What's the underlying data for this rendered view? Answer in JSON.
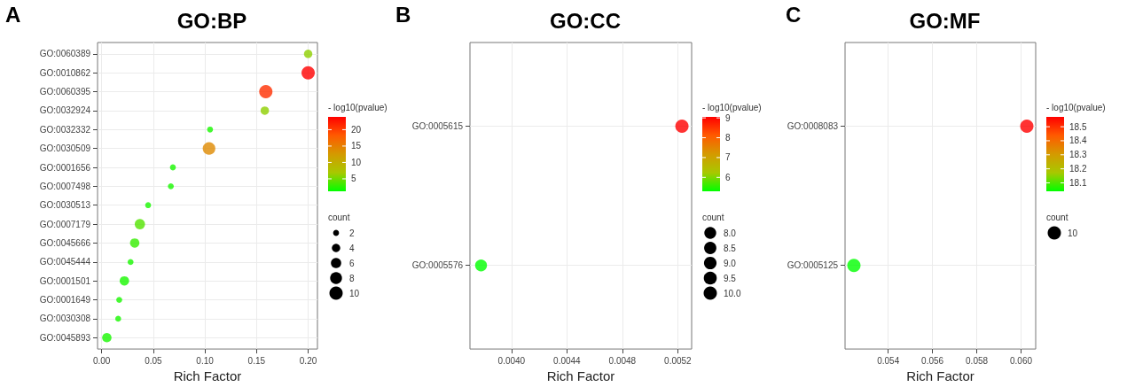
{
  "chart_data": [
    {
      "type": "bubble",
      "orientation": "horizontal",
      "title": "GO:BP",
      "annotations": [
        "A"
      ],
      "xlabel": "Rich Factor",
      "clabel": "- log10(pvalue)",
      "legend_title": "count",
      "grid": true,
      "categories": [
        "GO:0060389",
        "GO:0010862",
        "GO:0060395",
        "GO:0032924",
        "GO:0032332",
        "GO:0030509",
        "GO:0001656",
        "GO:0007498",
        "GO:0030513",
        "GO:0007179",
        "GO:0045666",
        "GO:0045444",
        "GO:0001501",
        "GO:0001649",
        "GO:0030308",
        "GO:0045893"
      ],
      "values": [
        0.2,
        0.2,
        0.159,
        0.158,
        0.105,
        0.104,
        0.069,
        0.067,
        0.045,
        0.037,
        0.032,
        0.028,
        0.022,
        0.017,
        0.016,
        0.005
      ],
      "sizes": [
        4,
        10,
        10,
        4,
        2,
        9,
        2,
        2,
        2,
        6,
        5,
        2,
        5,
        2,
        2,
        5
      ],
      "cvalues": [
        6,
        23.9,
        21,
        6,
        2,
        14,
        2,
        2,
        2,
        4,
        3,
        2,
        2,
        2,
        2,
        2
      ],
      "size_legend": [
        2,
        4,
        6,
        8,
        10
      ],
      "clim": [
        1.2,
        23.9
      ],
      "cticks": [
        5,
        10,
        15,
        20
      ],
      "xlim": [
        -0.004,
        0.209
      ],
      "xticks": [
        {
          "value": 0,
          "label": "0.00"
        },
        0.05,
        {
          "value": 0.1,
          "label": "0.10"
        },
        0.15,
        {
          "value": 0.2,
          "label": "0.20"
        }
      ]
    },
    {
      "type": "bubble",
      "orientation": "horizontal",
      "title": "GO:CC",
      "annotations": [
        "B"
      ],
      "xlabel": "Rich Factor",
      "clabel": "- log10(pvalue)",
      "legend_title": "count",
      "grid": true,
      "categories": [
        "GO:0005615",
        "GO:0005576"
      ],
      "values": [
        0.00523,
        0.00378
      ],
      "sizes": [
        10,
        8
      ],
      "cvalues": [
        9.05,
        5.3
      ],
      "size_legend": [
        {
          "value": 8,
          "label": "8.0"
        },
        8.5,
        {
          "value": 9,
          "label": "9.0"
        },
        9.5,
        {
          "value": 10,
          "label": "10.0"
        }
      ],
      "clim": [
        5.3,
        9.05
      ],
      "cticks": [
        6,
        7,
        8,
        9
      ],
      "xlim": [
        0.0037,
        0.0053
      ],
      "xticks": [
        {
          "value": 0.004,
          "label": "0.0040"
        },
        0.0044,
        0.0048,
        0.0052
      ]
    },
    {
      "type": "bubble",
      "orientation": "horizontal",
      "title": "GO:MF",
      "annotations": [
        "C"
      ],
      "xlabel": "Rich Factor",
      "clabel": "- log10(pvalue)",
      "legend_title": "count",
      "grid": true,
      "categories": [
        "GO:0008083",
        "GO:0005125"
      ],
      "values": [
        0.06026,
        0.05245
      ],
      "sizes": [
        10,
        10
      ],
      "cvalues": [
        18.57,
        18.04
      ],
      "size_legend": [
        10
      ],
      "clim": [
        18.04,
        18.57
      ],
      "cticks": [
        18.1,
        18.2,
        18.3,
        18.4,
        18.5
      ],
      "xlim": [
        0.05205,
        0.06066
      ],
      "xticks": [
        0.054,
        0.056,
        0.058,
        {
          "value": 0.06,
          "label": "0.060"
        }
      ]
    }
  ]
}
